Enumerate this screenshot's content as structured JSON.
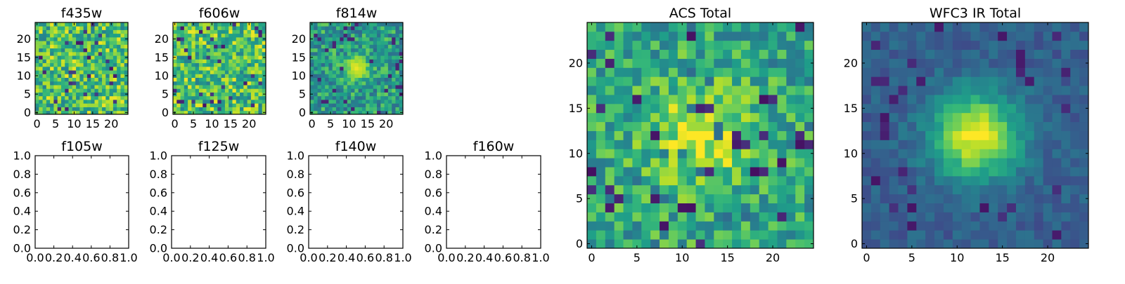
{
  "chart_data": [
    {
      "id": "f435w",
      "type": "heatmap",
      "title": "f435w",
      "empty": false,
      "pattern": "noise",
      "xlim": [
        -0.5,
        24.5
      ],
      "ylim": [
        -0.5,
        24.5
      ],
      "xticks": [
        0,
        5,
        10,
        15,
        20
      ],
      "yticks": [
        0,
        5,
        10,
        15,
        20
      ],
      "xtick_labels": [
        "0",
        "5",
        "10",
        "15",
        "20"
      ],
      "ytick_labels": [
        "0",
        "5",
        "10",
        "15",
        "20"
      ],
      "colormap": "viridis",
      "grid_size": [
        25,
        25
      ]
    },
    {
      "id": "f606w",
      "type": "heatmap",
      "title": "f606w",
      "empty": false,
      "pattern": "noise",
      "xlim": [
        -0.5,
        24.5
      ],
      "ylim": [
        -0.5,
        24.5
      ],
      "xticks": [
        0,
        5,
        10,
        15,
        20
      ],
      "yticks": [
        0,
        5,
        10,
        15,
        20
      ],
      "xtick_labels": [
        "0",
        "5",
        "10",
        "15",
        "20"
      ],
      "ytick_labels": [
        "0",
        "5",
        "10",
        "15",
        "20"
      ],
      "colormap": "viridis",
      "grid_size": [
        25,
        25
      ]
    },
    {
      "id": "f814w",
      "type": "heatmap",
      "title": "f814w",
      "empty": false,
      "pattern": "source",
      "xlim": [
        -0.5,
        24.5
      ],
      "ylim": [
        -0.5,
        24.5
      ],
      "xticks": [
        0,
        5,
        10,
        15,
        20
      ],
      "yticks": [
        0,
        5,
        10,
        15,
        20
      ],
      "xtick_labels": [
        "0",
        "5",
        "10",
        "15",
        "20"
      ],
      "ytick_labels": [
        "0",
        "5",
        "10",
        "15",
        "20"
      ],
      "colormap": "viridis",
      "grid_size": [
        25,
        25
      ],
      "source_center": [
        12,
        12
      ]
    },
    {
      "id": "f105w",
      "type": "heatmap",
      "title": "f105w",
      "empty": true,
      "xlim": [
        0,
        1
      ],
      "ylim": [
        0,
        1
      ],
      "xticks": [
        0,
        0.2,
        0.4,
        0.6,
        0.8,
        1.0
      ],
      "yticks": [
        0,
        0.2,
        0.4,
        0.6,
        0.8,
        1.0
      ],
      "xtick_labels": [
        "0.0",
        "0.2",
        "0.4",
        "0.6",
        "0.8",
        "1.0"
      ],
      "ytick_labels": [
        "0.0",
        "0.2",
        "0.4",
        "0.6",
        "0.8",
        "1.0"
      ]
    },
    {
      "id": "f125w",
      "type": "heatmap",
      "title": "f125w",
      "empty": true,
      "xlim": [
        0,
        1
      ],
      "ylim": [
        0,
        1
      ],
      "xticks": [
        0,
        0.2,
        0.4,
        0.6,
        0.8,
        1.0
      ],
      "yticks": [
        0,
        0.2,
        0.4,
        0.6,
        0.8,
        1.0
      ],
      "xtick_labels": [
        "0.0",
        "0.2",
        "0.4",
        "0.6",
        "0.8",
        "1.0"
      ],
      "ytick_labels": [
        "0.0",
        "0.2",
        "0.4",
        "0.6",
        "0.8",
        "1.0"
      ]
    },
    {
      "id": "f140w",
      "type": "heatmap",
      "title": "f140w",
      "empty": true,
      "xlim": [
        0,
        1
      ],
      "ylim": [
        0,
        1
      ],
      "xticks": [
        0,
        0.2,
        0.4,
        0.6,
        0.8,
        1.0
      ],
      "yticks": [
        0,
        0.2,
        0.4,
        0.6,
        0.8,
        1.0
      ],
      "xtick_labels": [
        "0.0",
        "0.2",
        "0.4",
        "0.6",
        "0.8",
        "1.0"
      ],
      "ytick_labels": [
        "0.0",
        "0.2",
        "0.4",
        "0.6",
        "0.8",
        "1.0"
      ]
    },
    {
      "id": "f160w",
      "type": "heatmap",
      "title": "f160w",
      "empty": true,
      "xlim": [
        0,
        1
      ],
      "ylim": [
        0,
        1
      ],
      "xticks": [
        0,
        0.2,
        0.4,
        0.6,
        0.8,
        1.0
      ],
      "yticks": [
        0,
        0.2,
        0.4,
        0.6,
        0.8,
        1.0
      ],
      "xtick_labels": [
        "0.0",
        "0.2",
        "0.4",
        "0.6",
        "0.8",
        "1.0"
      ],
      "ytick_labels": [
        "0.0",
        "0.2",
        "0.4",
        "0.6",
        "0.8",
        "1.0"
      ]
    },
    {
      "id": "acs-total",
      "type": "heatmap",
      "title": "ACS Total",
      "empty": false,
      "pattern": "source-noisy",
      "xlim": [
        -0.5,
        24.5
      ],
      "ylim": [
        -0.5,
        24.5
      ],
      "xticks": [
        0,
        5,
        10,
        15,
        20
      ],
      "yticks": [
        0,
        5,
        10,
        15,
        20
      ],
      "xtick_labels": [
        "0",
        "5",
        "10",
        "15",
        "20"
      ],
      "ytick_labels": [
        "0",
        "5",
        "10",
        "15",
        "20"
      ],
      "colormap": "viridis",
      "grid_size": [
        25,
        25
      ],
      "source_center": [
        12,
        12
      ]
    },
    {
      "id": "wfc3-ir-total",
      "type": "heatmap",
      "title": "WFC3 IR Total",
      "empty": false,
      "pattern": "source-smooth",
      "xlim": [
        -0.5,
        24.5
      ],
      "ylim": [
        -0.5,
        24.5
      ],
      "xticks": [
        0,
        5,
        10,
        15,
        20
      ],
      "yticks": [
        0,
        5,
        10,
        15,
        20
      ],
      "xtick_labels": [
        "0",
        "5",
        "10",
        "15",
        "20"
      ],
      "ytick_labels": [
        "0",
        "5",
        "10",
        "15",
        "20"
      ],
      "colormap": "viridis",
      "grid_size": [
        25,
        25
      ],
      "source_center": [
        12,
        12
      ]
    }
  ]
}
